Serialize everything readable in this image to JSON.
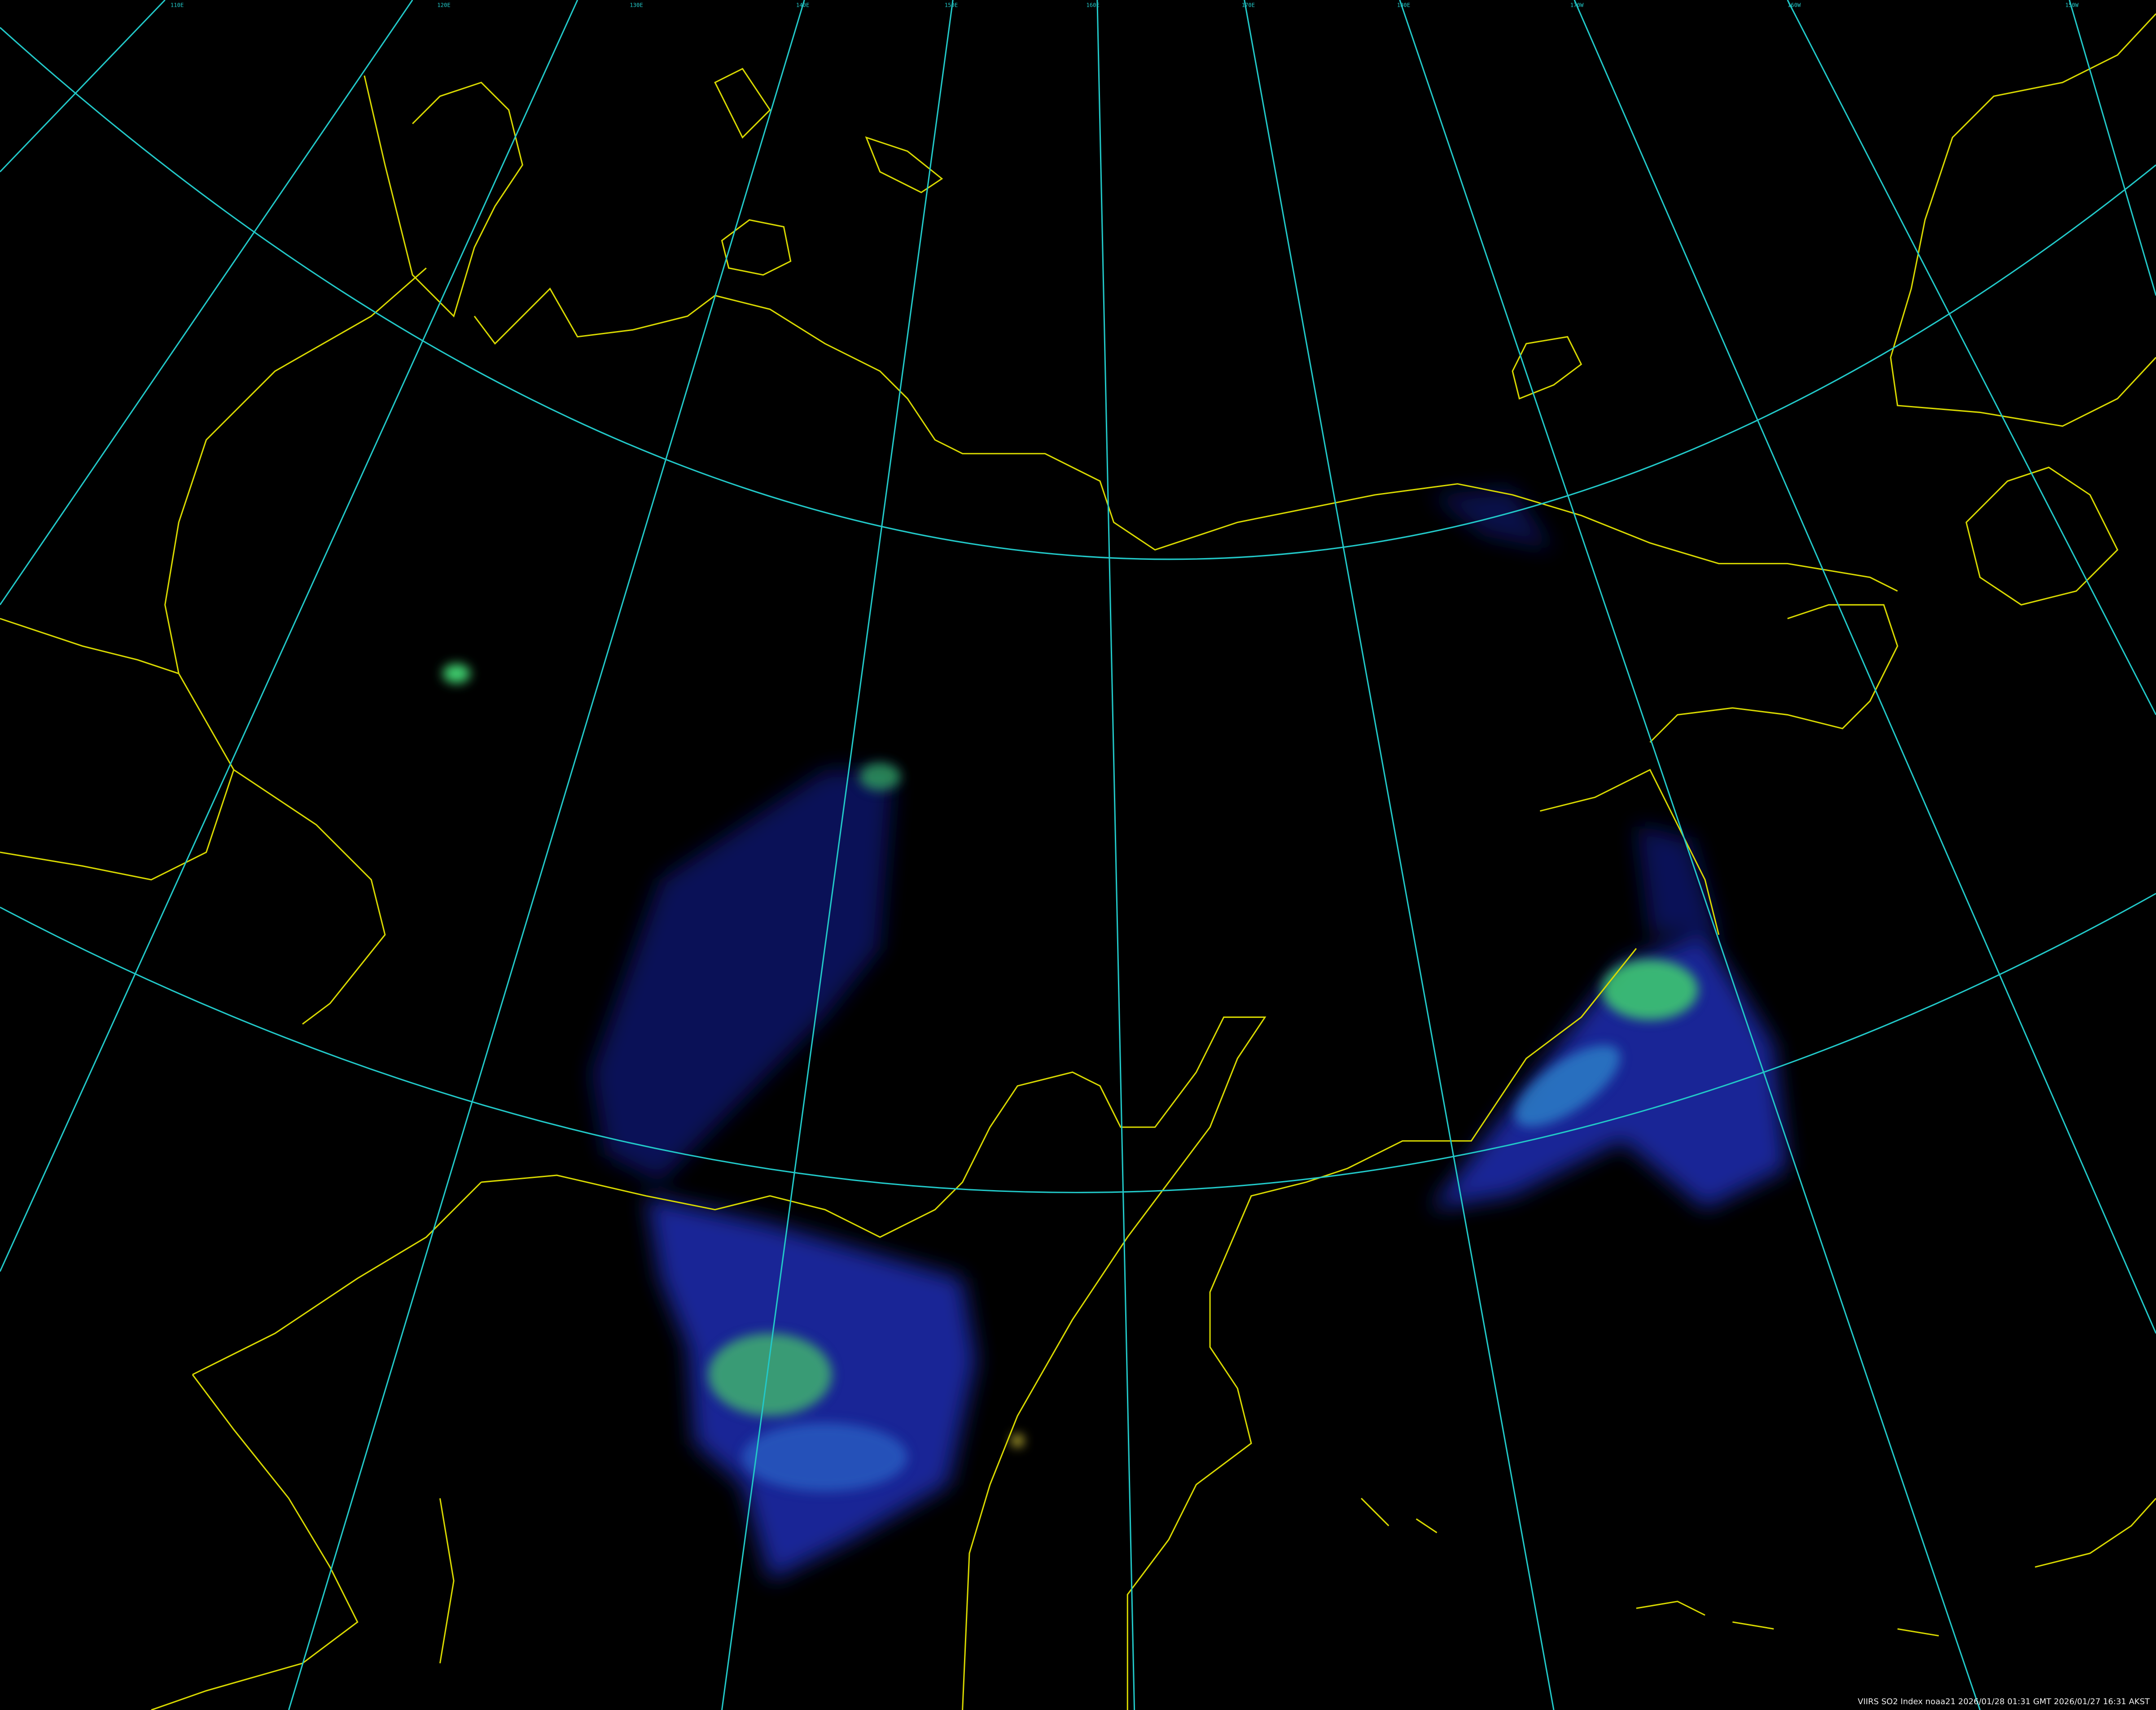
{
  "caption": "VIIRS SO2 Index noaa21 2026/01/28 01:31 GMT 2026/01/27 16:31 AKST",
  "graticule_labels": [
    "110E",
    "120E",
    "130E",
    "140E",
    "150E",
    "160E",
    "170E",
    "180E",
    "170W",
    "160W",
    "150W"
  ],
  "colors": {
    "background": "#000000",
    "graticule": "#22c8c8",
    "coastline": "#d8d800",
    "so2_low": "#1a2aa8",
    "so2_mid": "#2f8fd0",
    "so2_high": "#3fd070",
    "caption_text": "#f0f0f0"
  },
  "layers": [
    "so2-index-imagery",
    "coastlines",
    "lat-lon-graticule"
  ]
}
